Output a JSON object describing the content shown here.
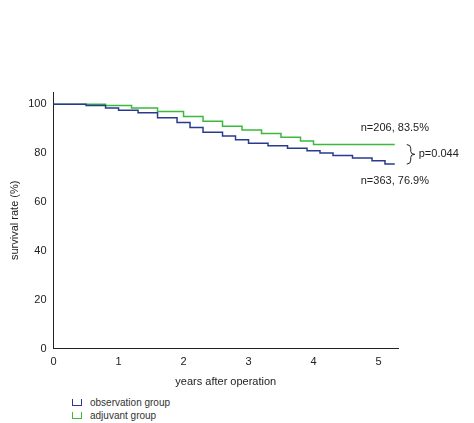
{
  "chart_data": {
    "type": "line",
    "x_label": "years after operation",
    "y_label": "survival rate (%)",
    "xlim": [
      0,
      5.3
    ],
    "xticks": [
      0,
      1,
      2,
      3,
      4,
      5
    ],
    "ylim": [
      0,
      105
    ],
    "yticks": [
      0,
      20,
      40,
      60,
      80,
      100
    ],
    "grid": false,
    "legend": "bottom left",
    "line_style": "step",
    "series": [
      {
        "name": "observation group",
        "color": "#2b3a8f",
        "x": [
          0,
          0.5,
          0.8,
          1.0,
          1.3,
          1.6,
          1.9,
          2.1,
          2.3,
          2.6,
          2.8,
          3.0,
          3.3,
          3.6,
          3.9,
          4.1,
          4.3,
          4.6,
          4.9,
          5.1,
          5.25
        ],
        "values": [
          100,
          100,
          99.5,
          98.5,
          97.5,
          96.5,
          94.5,
          92.5,
          90.5,
          88.5,
          87,
          85.5,
          84,
          83,
          82,
          81,
          80,
          79,
          78,
          76.9,
          75.5
        ]
      },
      {
        "name": "adjuvant group",
        "color": "#3cb93c",
        "x": [
          0,
          0.8,
          1.2,
          1.6,
          2.0,
          2.3,
          2.6,
          2.9,
          3.2,
          3.5,
          3.8,
          4.0,
          4.3,
          5.25
        ],
        "values": [
          100,
          100,
          99.5,
          98.5,
          97,
          95,
          93,
          91,
          89.5,
          88,
          86.5,
          85,
          83.5,
          83.5
        ]
      }
    ],
    "annotations": [
      "n=206, 83.5%",
      "n=363, 76.9%",
      "p=0.044"
    ]
  }
}
